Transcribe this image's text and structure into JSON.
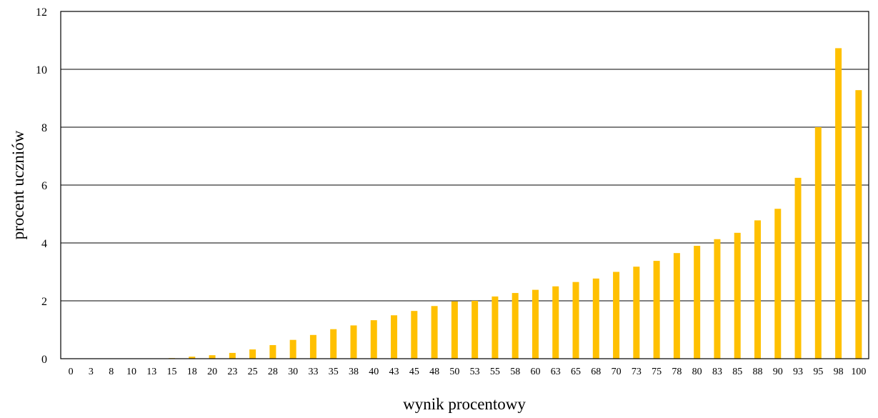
{
  "chart_data": {
    "type": "bar",
    "title": "",
    "xlabel": "wynik procentowy",
    "ylabel": "procent uczniów",
    "ylim": [
      0,
      12
    ],
    "yticks": [
      0,
      2,
      4,
      6,
      8,
      10,
      12
    ],
    "grid": true,
    "bar_color": "#FFC000",
    "categories": [
      "0",
      "3",
      "8",
      "10",
      "13",
      "15",
      "18",
      "20",
      "23",
      "25",
      "28",
      "30",
      "33",
      "35",
      "38",
      "40",
      "43",
      "45",
      "48",
      "50",
      "53",
      "55",
      "58",
      "60",
      "63",
      "65",
      "68",
      "70",
      "73",
      "75",
      "78",
      "80",
      "83",
      "85",
      "88",
      "90",
      "93",
      "95",
      "98",
      "100"
    ],
    "values": [
      0,
      0,
      0,
      0,
      0,
      0.02,
      0.07,
      0.12,
      0.2,
      0.32,
      0.47,
      0.65,
      0.82,
      1.02,
      1.15,
      1.33,
      1.5,
      1.65,
      1.82,
      1.98,
      2.0,
      2.15,
      2.27,
      2.38,
      2.5,
      2.65,
      2.77,
      3.0,
      3.18,
      3.38,
      3.65,
      3.9,
      4.13,
      4.35,
      4.78,
      5.18,
      6.25,
      8.0,
      10.73,
      9.28
    ]
  }
}
